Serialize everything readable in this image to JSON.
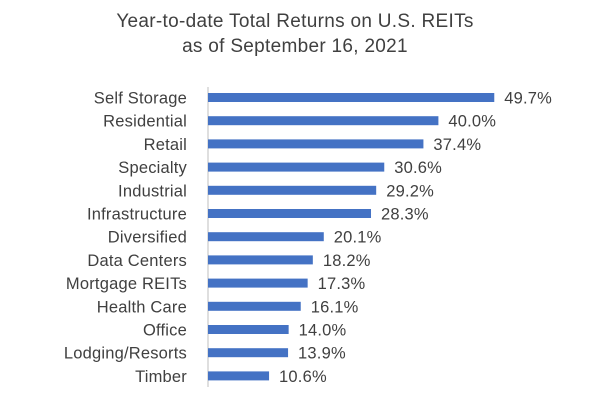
{
  "chart_data": {
    "type": "bar",
    "orientation": "horizontal",
    "title": [
      "Year-to-date Total Returns on U.S. REITs",
      "as of September 16, 2021"
    ],
    "categories": [
      "Self Storage",
      "Residential",
      "Retail",
      "Specialty",
      "Industrial",
      "Infrastructure",
      "Diversified",
      "Data Centers",
      "Mortgage REITs",
      "Health Care",
      "Office",
      "Lodging/Resorts",
      "Timber"
    ],
    "values": [
      49.7,
      40.0,
      37.4,
      30.6,
      29.2,
      28.3,
      20.1,
      18.2,
      17.3,
      16.1,
      14.0,
      13.9,
      10.6
    ],
    "value_labels": [
      "49.7%",
      "40.0%",
      "37.4%",
      "30.6%",
      "29.2%",
      "28.3%",
      "20.1%",
      "18.2%",
      "17.3%",
      "16.1%",
      "14.0%",
      "13.9%",
      "10.6%"
    ],
    "xlabel": "",
    "ylabel": "",
    "xlim": [
      0,
      50
    ],
    "grid": false,
    "legend": "none",
    "bar_color": "#4472C4",
    "axis_color": "#BFBFBF",
    "text_color": "#404040"
  }
}
